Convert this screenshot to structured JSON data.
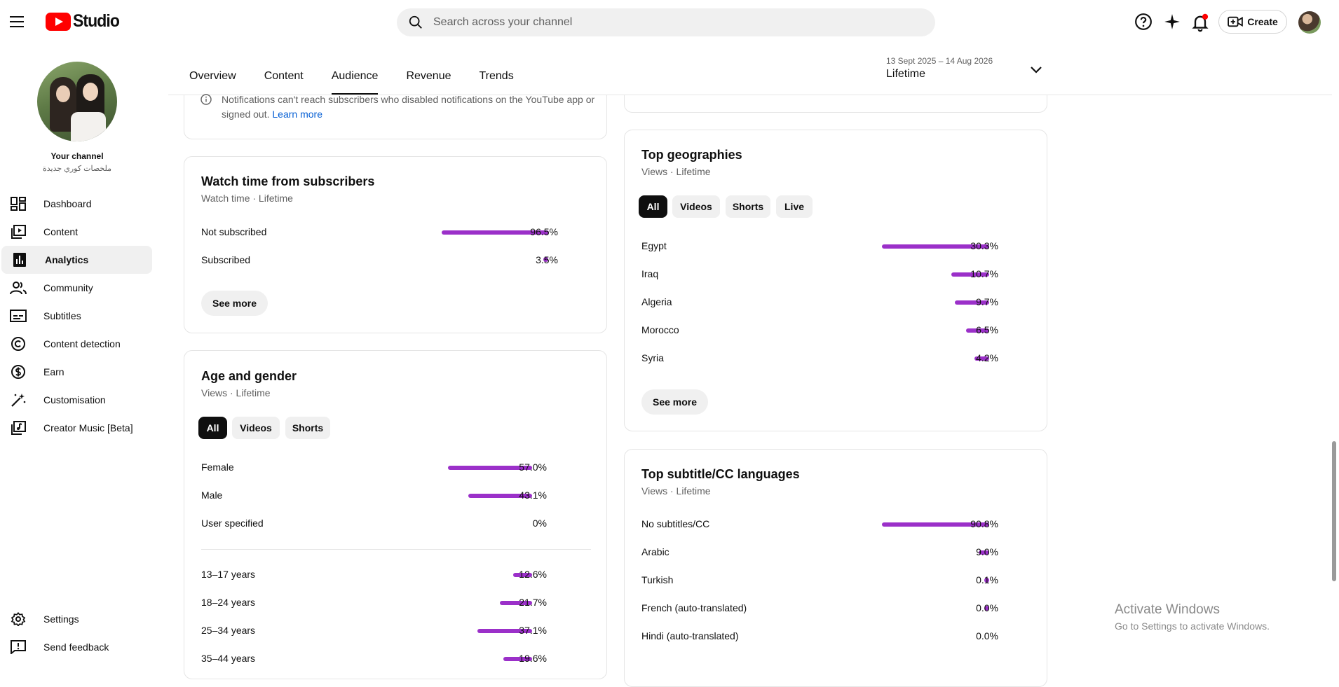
{
  "header": {
    "logo_text": "Studio",
    "search_placeholder": "Search across your channel",
    "create_label": "Create"
  },
  "sidebar": {
    "your_channel": "Your channel",
    "channel_name": "ملخصات كوري جديدة",
    "items": [
      {
        "label": "Dashboard",
        "icon": "dashboard-icon"
      },
      {
        "label": "Content",
        "icon": "content-icon"
      },
      {
        "label": "Analytics",
        "icon": "analytics-icon",
        "active": true
      },
      {
        "label": "Community",
        "icon": "community-icon"
      },
      {
        "label": "Subtitles",
        "icon": "subtitles-icon"
      },
      {
        "label": "Content detection",
        "icon": "copyright-icon"
      },
      {
        "label": "Earn",
        "icon": "dollar-icon"
      },
      {
        "label": "Customisation",
        "icon": "magic-wand-icon"
      },
      {
        "label": "Creator Music [Beta]",
        "icon": "music-icon"
      }
    ],
    "bottom": [
      {
        "label": "Settings",
        "icon": "gear-icon"
      },
      {
        "label": "Send feedback",
        "icon": "feedback-icon"
      }
    ]
  },
  "tabs": [
    "Overview",
    "Content",
    "Audience",
    "Revenue",
    "Trends"
  ],
  "active_tab": "Audience",
  "date_range": {
    "dates": "13 Sept 2025 – 14 Aug 2026",
    "period": "Lifetime"
  },
  "notice": {
    "text": "Notifications can't reach subscribers who disabled notifications on the YouTube app or signed out.",
    "link": "Learn more"
  },
  "watch_time": {
    "title": "Watch time from subscribers",
    "subtitle": "Watch time · Lifetime",
    "rows": [
      {
        "label": "Not subscribed",
        "pct": "96.5%",
        "value": 96.5
      },
      {
        "label": "Subscribed",
        "pct": "3.5%",
        "value": 3.5
      }
    ],
    "see_more": "See more"
  },
  "age_gender": {
    "title": "Age and gender",
    "subtitle": "Views · Lifetime",
    "filters": [
      "All",
      "Videos",
      "Shorts"
    ],
    "gender": [
      {
        "label": "Female",
        "pct": "57.0%",
        "value": 57.0
      },
      {
        "label": "Male",
        "pct": "43.1%",
        "value": 43.1
      },
      {
        "label": "User specified",
        "pct": "0%",
        "value": 0
      }
    ],
    "ages": [
      {
        "label": "13–17 years",
        "pct": "12.6%",
        "value": 12.6
      },
      {
        "label": "18–24 years",
        "pct": "21.7%",
        "value": 21.7
      },
      {
        "label": "25–34 years",
        "pct": "37.1%",
        "value": 37.1
      },
      {
        "label": "35–44 years",
        "pct": "19.6%",
        "value": 19.6
      }
    ]
  },
  "geographies": {
    "title": "Top geographies",
    "subtitle": "Views · Lifetime",
    "filters": [
      "All",
      "Videos",
      "Shorts",
      "Live"
    ],
    "rows": [
      {
        "label": "Egypt",
        "pct": "30.3%",
        "value": 30.3
      },
      {
        "label": "Iraq",
        "pct": "10.7%",
        "value": 10.7
      },
      {
        "label": "Algeria",
        "pct": "9.7%",
        "value": 9.7
      },
      {
        "label": "Morocco",
        "pct": "6.5%",
        "value": 6.5
      },
      {
        "label": "Syria",
        "pct": "4.2%",
        "value": 4.2
      }
    ],
    "see_more": "See more"
  },
  "subtitles": {
    "title": "Top subtitle/CC languages",
    "subtitle": "Views · Lifetime",
    "rows": [
      {
        "label": "No subtitles/CC",
        "pct": "90.8%",
        "value": 90.8
      },
      {
        "label": "Arabic",
        "pct": "9.0%",
        "value": 9.0
      },
      {
        "label": "Turkish",
        "pct": "0.1%",
        "value": 0.1
      },
      {
        "label": "French (auto-translated)",
        "pct": "0.0%",
        "value": 0.04
      },
      {
        "label": "Hindi (auto-translated)",
        "pct": "0.0%",
        "value": 0
      }
    ]
  },
  "watermark": {
    "line1": "Activate Windows",
    "line2": "Go to Settings to activate Windows."
  },
  "colors": {
    "bar": "#9b30c9",
    "brand_red": "#ff0000",
    "link": "#065fd4"
  }
}
